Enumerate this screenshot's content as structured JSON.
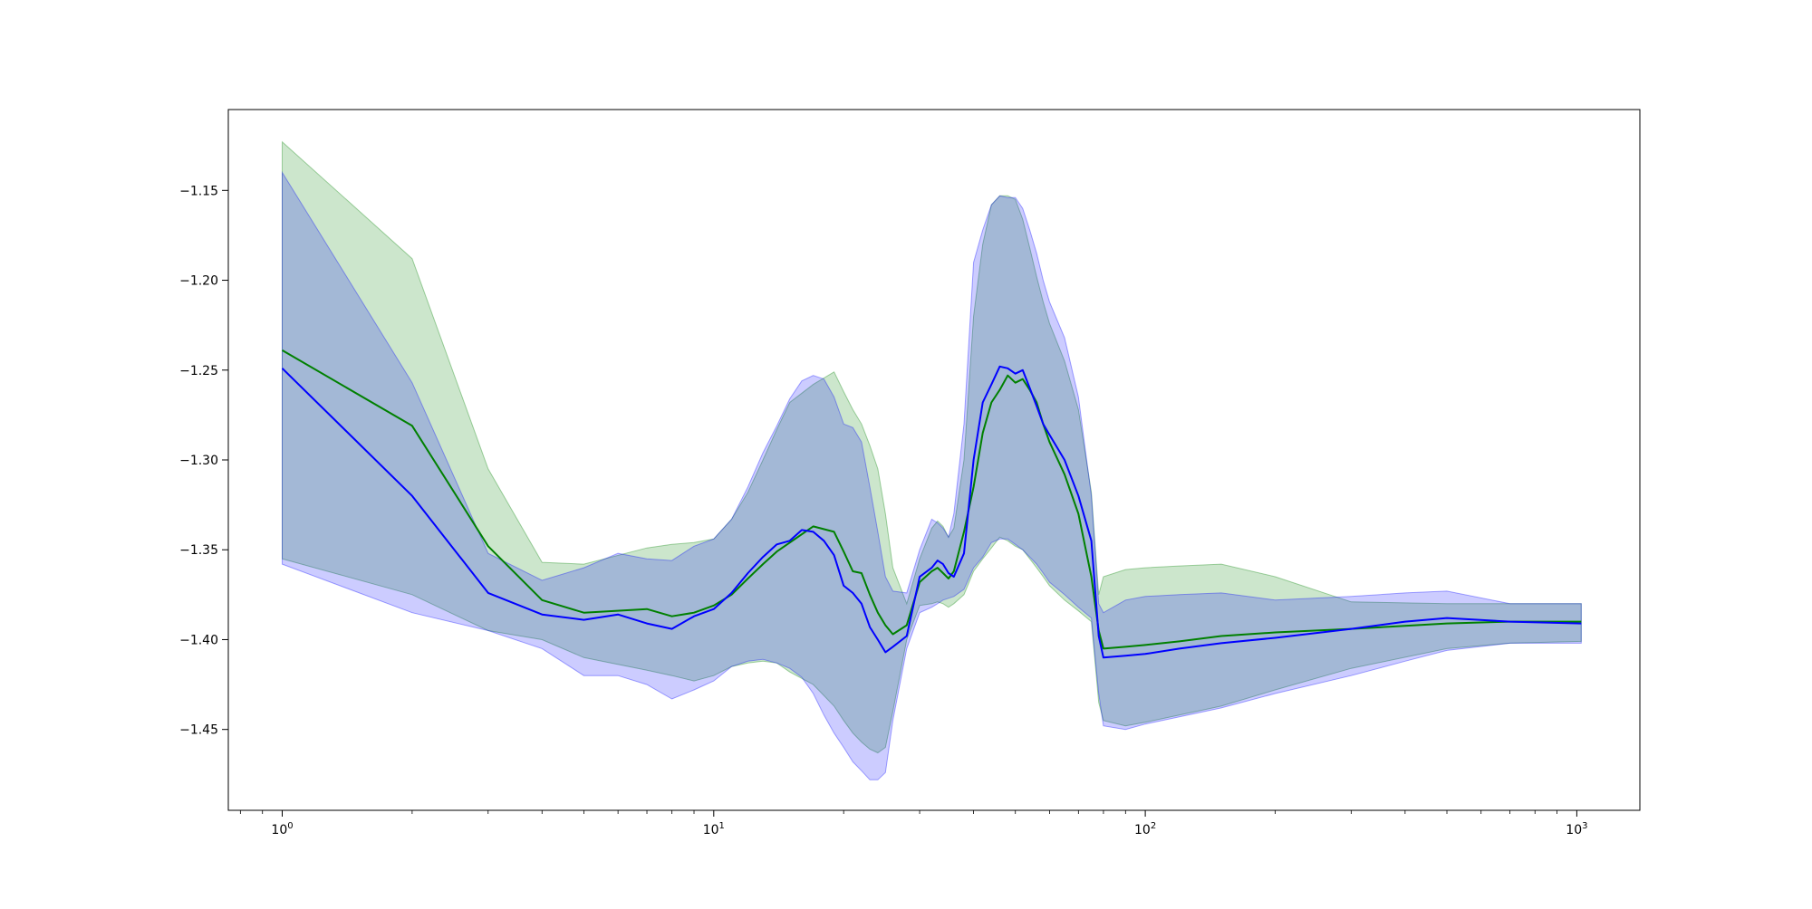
{
  "chart_data": {
    "type": "line",
    "title": "",
    "xlabel": "",
    "ylabel": "",
    "xscale": "log",
    "xlim": [
      0.75,
      1400
    ],
    "ylim": [
      -1.495,
      -1.105
    ],
    "grid": false,
    "legend": "none",
    "x_tick_values": [
      1,
      10,
      100,
      1000
    ],
    "x_tick_labels": [
      "10^0",
      "10^1",
      "10^2",
      "10^3"
    ],
    "y_tick_values": [
      -1.15,
      -1.2,
      -1.25,
      -1.3,
      -1.35,
      -1.4,
      -1.45
    ],
    "y_tick_labels": [
      "−1.15",
      "−1.20",
      "−1.25",
      "−1.30",
      "−1.35",
      "−1.40",
      "−1.45"
    ],
    "series": [
      {
        "color": "#008000",
        "band_color": "#008000",
        "band_opacity": 0.2,
        "x": [
          1,
          2,
          3,
          4,
          5,
          7,
          8,
          9,
          10,
          11,
          12,
          13,
          14,
          15,
          17,
          19,
          20,
          21,
          22,
          23,
          24,
          25,
          26,
          28,
          30,
          32,
          33,
          34,
          35,
          36,
          38,
          40,
          42,
          44,
          46,
          48,
          50,
          52,
          54,
          56,
          58,
          60,
          65,
          70,
          75,
          78,
          80,
          90,
          100,
          120,
          150,
          200,
          300,
          500,
          700,
          1024
        ],
        "y": [
          -1.239,
          -1.281,
          -1.348,
          -1.378,
          -1.385,
          -1.383,
          -1.387,
          -1.385,
          -1.381,
          -1.375,
          -1.366,
          -1.358,
          -1.351,
          -1.346,
          -1.337,
          -1.34,
          -1.351,
          -1.362,
          -1.363,
          -1.375,
          -1.385,
          -1.392,
          -1.397,
          -1.392,
          -1.368,
          -1.362,
          -1.36,
          -1.363,
          -1.366,
          -1.362,
          -1.34,
          -1.315,
          -1.285,
          -1.268,
          -1.261,
          -1.253,
          -1.257,
          -1.255,
          -1.261,
          -1.268,
          -1.28,
          -1.29,
          -1.308,
          -1.33,
          -1.365,
          -1.395,
          -1.405,
          -1.404,
          -1.403,
          -1.401,
          -1.398,
          -1.396,
          -1.394,
          -1.391,
          -1.39,
          -1.39
        ],
        "lower": [
          -1.355,
          -1.375,
          -1.395,
          -1.4,
          -1.41,
          -1.417,
          -1.42,
          -1.423,
          -1.42,
          -1.415,
          -1.413,
          -1.412,
          -1.413,
          -1.418,
          -1.425,
          -1.437,
          -1.445,
          -1.452,
          -1.457,
          -1.461,
          -1.463,
          -1.46,
          -1.44,
          -1.4,
          -1.381,
          -1.38,
          -1.379,
          -1.38,
          -1.382,
          -1.38,
          -1.375,
          -1.362,
          -1.355,
          -1.349,
          -1.343,
          -1.345,
          -1.348,
          -1.35,
          -1.355,
          -1.36,
          -1.365,
          -1.37,
          -1.378,
          -1.384,
          -1.39,
          -1.435,
          -1.445,
          -1.448,
          -1.446,
          -1.442,
          -1.437,
          -1.428,
          -1.416,
          -1.405,
          -1.402,
          -1.401
        ],
        "upper": [
          -1.123,
          -1.188,
          -1.305,
          -1.357,
          -1.358,
          -1.349,
          -1.347,
          -1.346,
          -1.344,
          -1.333,
          -1.318,
          -1.3,
          -1.283,
          -1.268,
          -1.258,
          -1.251,
          -1.262,
          -1.272,
          -1.28,
          -1.292,
          -1.305,
          -1.33,
          -1.36,
          -1.38,
          -1.355,
          -1.338,
          -1.334,
          -1.337,
          -1.343,
          -1.338,
          -1.3,
          -1.22,
          -1.18,
          -1.158,
          -1.153,
          -1.153,
          -1.155,
          -1.166,
          -1.182,
          -1.198,
          -1.212,
          -1.224,
          -1.245,
          -1.272,
          -1.318,
          -1.375,
          -1.365,
          -1.361,
          -1.36,
          -1.359,
          -1.358,
          -1.365,
          -1.379,
          -1.38,
          -1.38,
          -1.38
        ]
      },
      {
        "color": "#0000ff",
        "band_color": "#0000ff",
        "band_opacity": 0.2,
        "x": [
          1,
          2,
          3,
          4,
          5,
          6,
          7,
          8,
          9,
          10,
          11,
          12,
          13,
          14,
          15,
          16,
          17,
          18,
          19,
          20,
          21,
          22,
          23,
          24,
          25,
          26,
          28,
          30,
          32,
          33,
          34,
          35,
          36,
          38,
          40,
          42,
          44,
          46,
          48,
          50,
          52,
          54,
          56,
          58,
          60,
          65,
          70,
          75,
          78,
          80,
          90,
          100,
          120,
          150,
          200,
          300,
          400,
          500,
          700,
          1024
        ],
        "y": [
          -1.249,
          -1.32,
          -1.374,
          -1.386,
          -1.389,
          -1.386,
          -1.391,
          -1.394,
          -1.387,
          -1.383,
          -1.374,
          -1.363,
          -1.354,
          -1.347,
          -1.345,
          -1.339,
          -1.34,
          -1.345,
          -1.353,
          -1.37,
          -1.374,
          -1.38,
          -1.393,
          -1.4,
          -1.407,
          -1.404,
          -1.398,
          -1.365,
          -1.36,
          -1.356,
          -1.358,
          -1.363,
          -1.365,
          -1.352,
          -1.3,
          -1.268,
          -1.258,
          -1.248,
          -1.249,
          -1.252,
          -1.25,
          -1.26,
          -1.27,
          -1.28,
          -1.286,
          -1.3,
          -1.32,
          -1.345,
          -1.398,
          -1.41,
          -1.409,
          -1.408,
          -1.405,
          -1.402,
          -1.399,
          -1.394,
          -1.39,
          -1.388,
          -1.39,
          -1.391
        ],
        "lower": [
          -1.358,
          -1.385,
          -1.395,
          -1.405,
          -1.42,
          -1.42,
          -1.425,
          -1.433,
          -1.428,
          -1.423,
          -1.415,
          -1.412,
          -1.411,
          -1.413,
          -1.416,
          -1.421,
          -1.43,
          -1.442,
          -1.452,
          -1.46,
          -1.468,
          -1.473,
          -1.478,
          -1.478,
          -1.474,
          -1.445,
          -1.405,
          -1.385,
          -1.382,
          -1.38,
          -1.378,
          -1.377,
          -1.376,
          -1.372,
          -1.36,
          -1.354,
          -1.346,
          -1.344,
          -1.344,
          -1.347,
          -1.35,
          -1.354,
          -1.358,
          -1.363,
          -1.368,
          -1.375,
          -1.382,
          -1.388,
          -1.43,
          -1.448,
          -1.45,
          -1.447,
          -1.443,
          -1.438,
          -1.43,
          -1.42,
          -1.412,
          -1.406,
          -1.402,
          -1.402
        ],
        "upper": [
          -1.14,
          -1.257,
          -1.352,
          -1.367,
          -1.36,
          -1.352,
          -1.355,
          -1.356,
          -1.348,
          -1.344,
          -1.333,
          -1.315,
          -1.296,
          -1.281,
          -1.266,
          -1.256,
          -1.253,
          -1.255,
          -1.265,
          -1.28,
          -1.282,
          -1.29,
          -1.315,
          -1.34,
          -1.365,
          -1.373,
          -1.374,
          -1.35,
          -1.333,
          -1.335,
          -1.338,
          -1.343,
          -1.33,
          -1.28,
          -1.19,
          -1.172,
          -1.158,
          -1.153,
          -1.154,
          -1.154,
          -1.16,
          -1.172,
          -1.185,
          -1.2,
          -1.212,
          -1.232,
          -1.265,
          -1.32,
          -1.38,
          -1.385,
          -1.378,
          -1.376,
          -1.375,
          -1.374,
          -1.378,
          -1.376,
          -1.374,
          -1.373,
          -1.38,
          -1.38
        ]
      }
    ]
  }
}
